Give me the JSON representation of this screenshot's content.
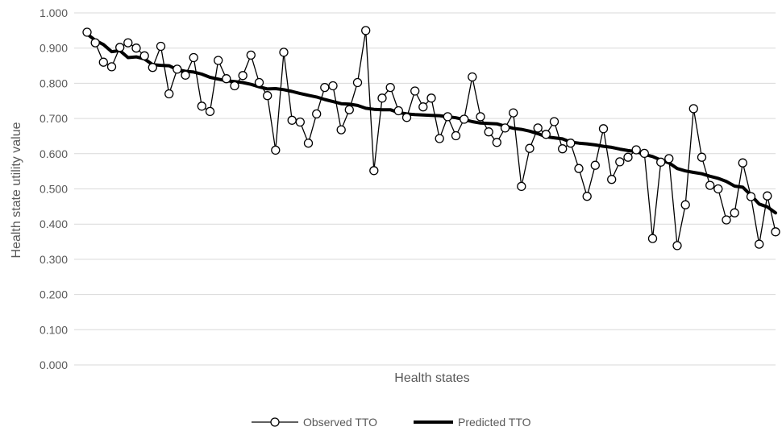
{
  "chart_data": {
    "type": "line",
    "xlabel": "Health states",
    "ylabel": "Health state utility value",
    "ylim": [
      0,
      1
    ],
    "yticks": [
      "0.000",
      "0.100",
      "0.200",
      "0.300",
      "0.400",
      "0.500",
      "0.600",
      "0.700",
      "0.800",
      "0.900",
      "1.000"
    ],
    "grid": true,
    "legend": "bottom",
    "series": [
      {
        "name": "Observed TTO",
        "style": "thin-line-circle-markers",
        "color": "#000000",
        "values": [
          0.945,
          0.915,
          0.86,
          0.847,
          0.902,
          0.915,
          0.9,
          0.878,
          0.845,
          0.905,
          0.77,
          0.84,
          0.823,
          0.873,
          0.735,
          0.72,
          0.865,
          0.813,
          0.793,
          0.822,
          0.88,
          0.802,
          0.765,
          0.61,
          0.888,
          0.695,
          0.69,
          0.63,
          0.713,
          0.788,
          0.793,
          0.668,
          0.725,
          0.802,
          0.95,
          0.552,
          0.758,
          0.788,
          0.722,
          0.703,
          0.778,
          0.733,
          0.758,
          0.643,
          0.705,
          0.651,
          0.698,
          0.818,
          0.705,
          0.662,
          0.632,
          0.673,
          0.716,
          0.507,
          0.615,
          0.673,
          0.655,
          0.691,
          0.614,
          0.63,
          0.558,
          0.479,
          0.567,
          0.671,
          0.527,
          0.577,
          0.59,
          0.611,
          0.601,
          0.359,
          0.576,
          0.586,
          0.339,
          0.455,
          0.728,
          0.59,
          0.51,
          0.5,
          0.412,
          0.432,
          0.574,
          0.478,
          0.343,
          0.48,
          0.378
        ]
      },
      {
        "name": "Predicted TTO",
        "style": "thick-line",
        "color": "#000000",
        "values": [
          0.94,
          0.922,
          0.91,
          0.89,
          0.893,
          0.873,
          0.875,
          0.869,
          0.853,
          0.851,
          0.85,
          0.839,
          0.834,
          0.832,
          0.826,
          0.817,
          0.812,
          0.807,
          0.805,
          0.802,
          0.797,
          0.79,
          0.784,
          0.785,
          0.782,
          0.777,
          0.771,
          0.766,
          0.761,
          0.754,
          0.748,
          0.742,
          0.741,
          0.737,
          0.729,
          0.726,
          0.725,
          0.725,
          0.717,
          0.713,
          0.711,
          0.71,
          0.709,
          0.708,
          0.705,
          0.702,
          0.697,
          0.691,
          0.687,
          0.686,
          0.685,
          0.678,
          0.672,
          0.669,
          0.664,
          0.657,
          0.648,
          0.645,
          0.642,
          0.633,
          0.63,
          0.628,
          0.625,
          0.621,
          0.618,
          0.613,
          0.609,
          0.606,
          0.598,
          0.592,
          0.582,
          0.574,
          0.558,
          0.551,
          0.547,
          0.543,
          0.536,
          0.53,
          0.521,
          0.508,
          0.505,
          0.482,
          0.457,
          0.449,
          0.432
        ]
      }
    ]
  }
}
